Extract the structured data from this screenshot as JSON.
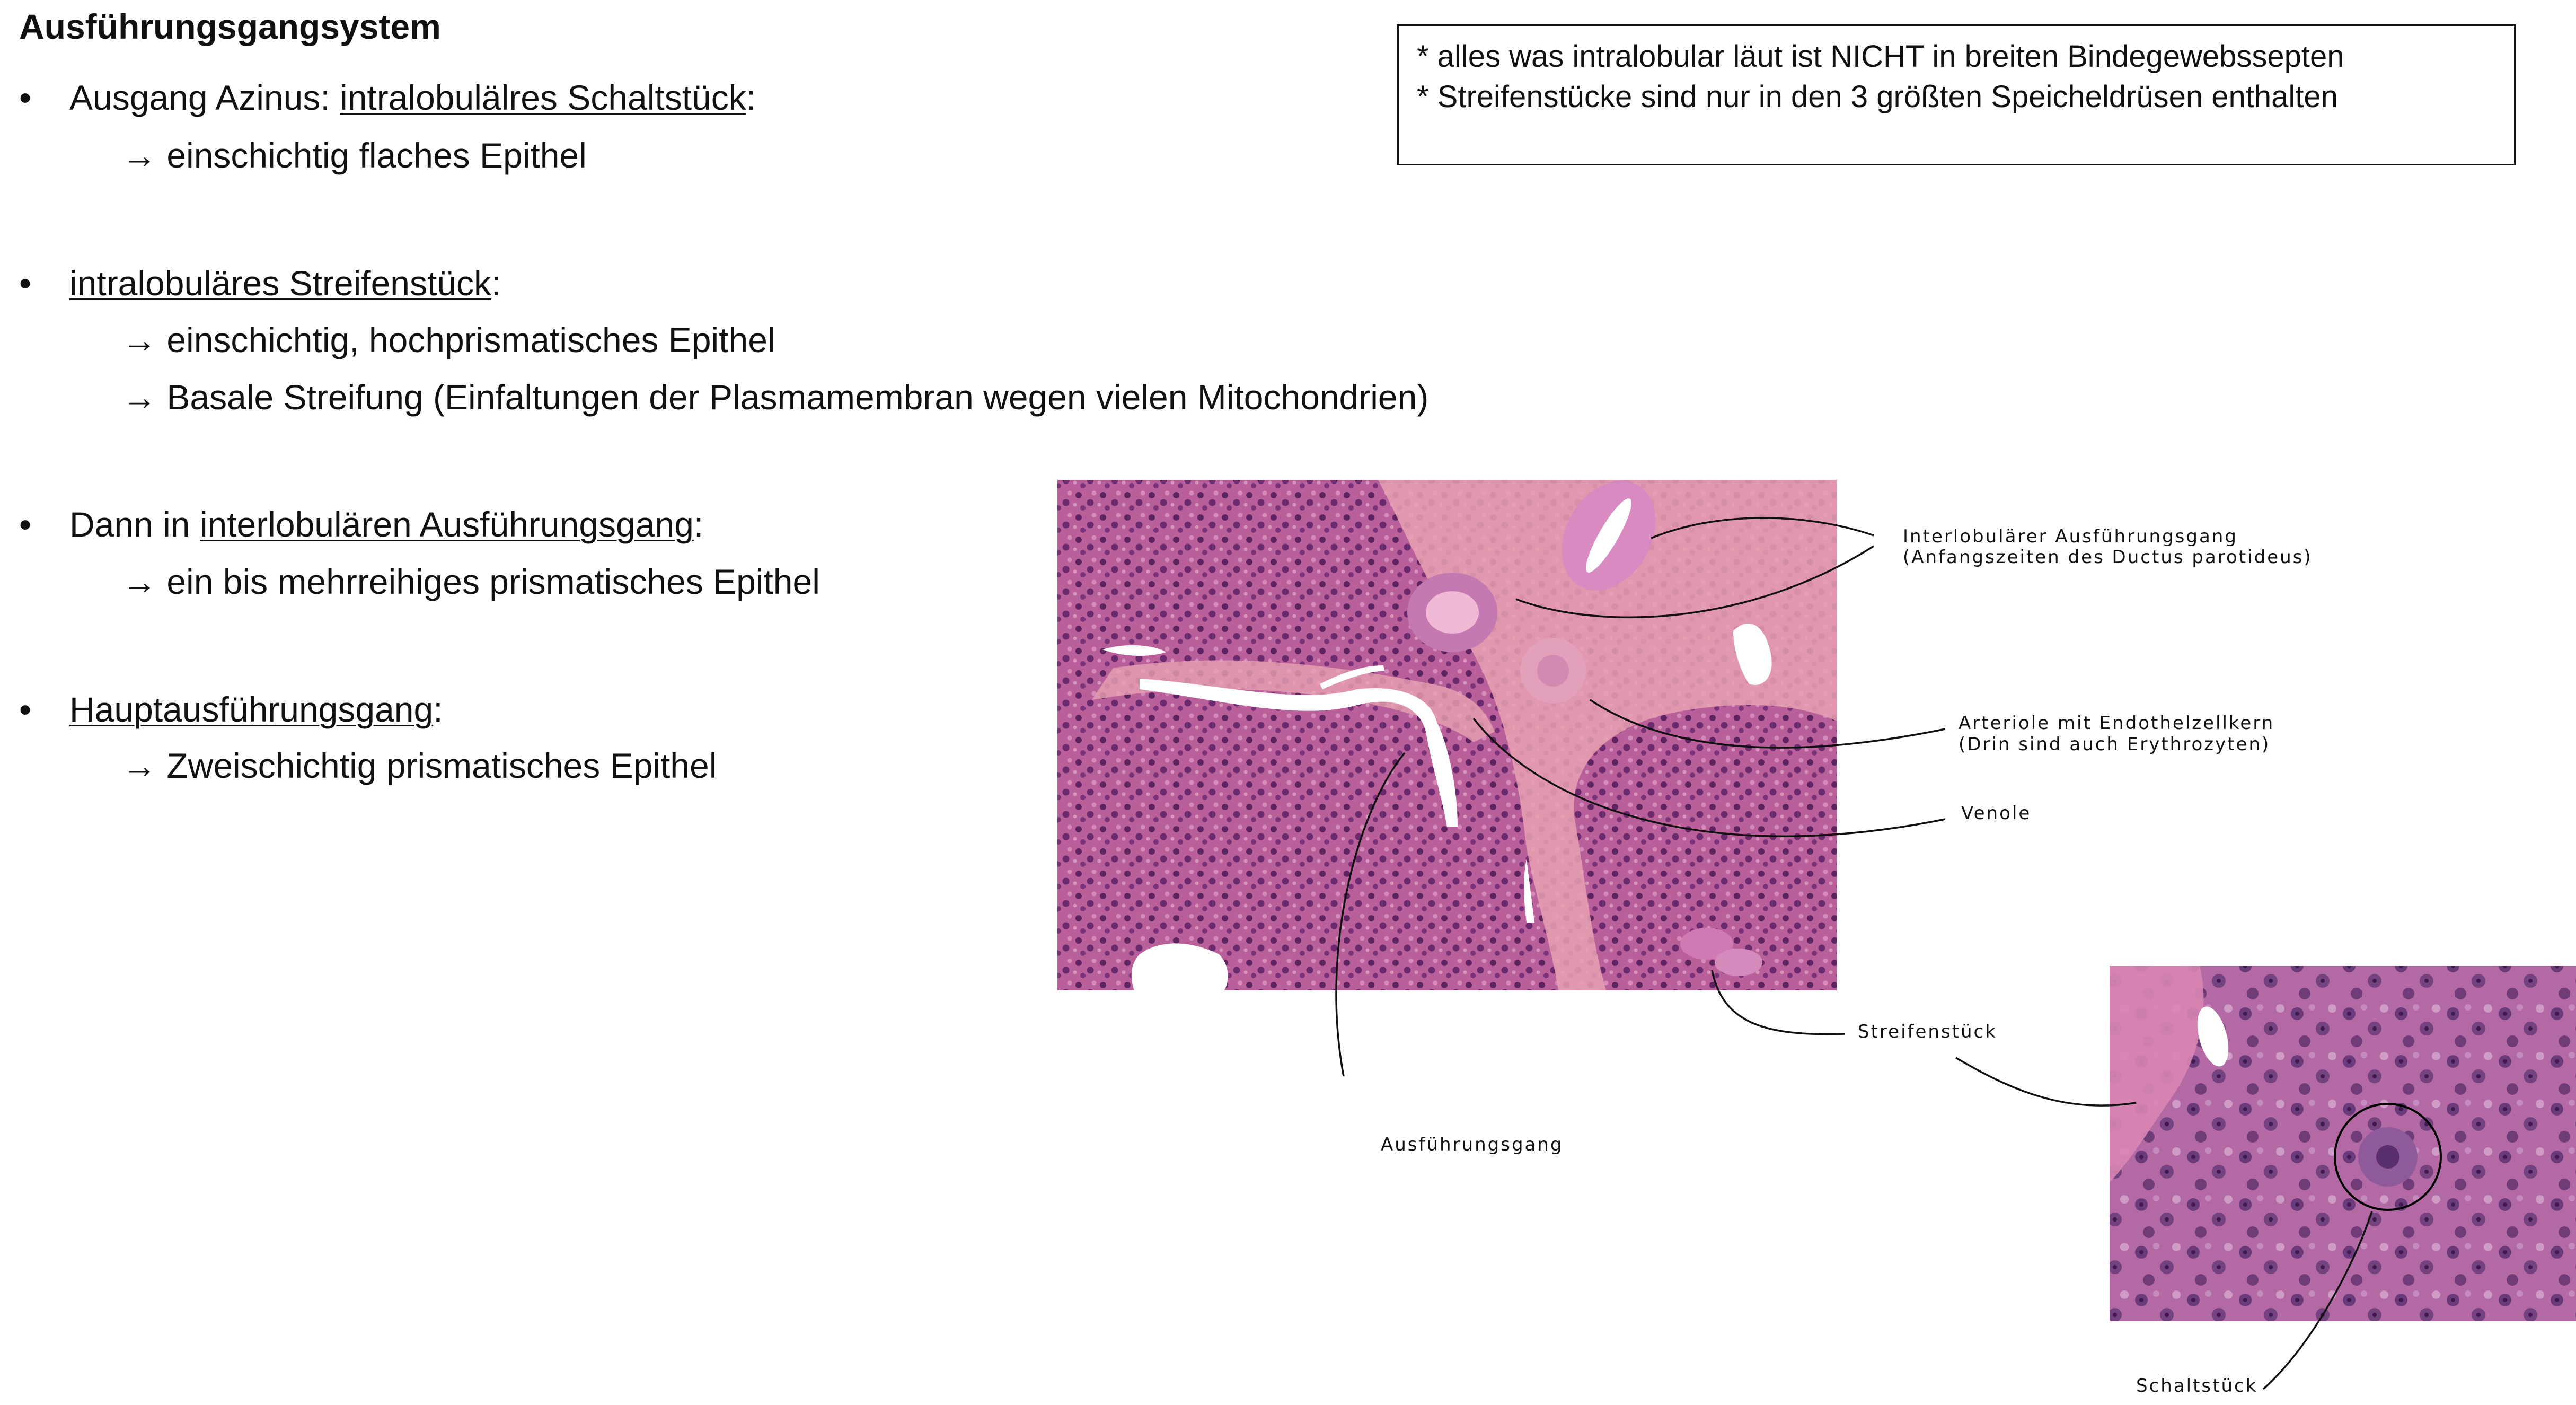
{
  "title": "Ausführungsgangsystem",
  "bullets": [
    {
      "pre": "Ausgang Azinus: ",
      "term": "intralobulälres Schaltstück",
      "post": ":",
      "subs": [
        "→ einschichtig flaches Epithel"
      ]
    },
    {
      "pre": "",
      "term": "intralobuläres Streifenstück",
      "post": ":",
      "subs": [
        "→ einschichtig, hochprismatisches Epithel",
        "→ Basale Streifung (Einfaltungen der Plasmamembran wegen vielen Mitochondrien)"
      ]
    },
    {
      "pre": "Dann in ",
      "term": "interlobulären Ausführungsgang",
      "post": ":",
      "subs": [
        "→ ein bis mehrreihiges prismatisches Epithel"
      ]
    },
    {
      "pre": "",
      "term": "Hauptausführungsgang",
      "post": ":",
      "subs": [
        "→ Zweischichtig prismatisches Epithel"
      ]
    }
  ],
  "bullet_char": "•",
  "note": {
    "line1": "* alles was intralobular läut ist NICHT in breiten Bindegewebssepten",
    "line2": " * Streifenstücke sind nur in den 3 größten Speicheldrüsen enthalten"
  },
  "annotations": {
    "interlobular_1": "Interlobulärer Ausführungsgang",
    "interlobular_2": "(Anfangszeiten des Ductus parotideus)",
    "arteriole_1": "Arteriole mit Endothelzellkern",
    "arteriole_2": "(Drin sind auch Erythrozyten)",
    "venole": "Venole",
    "streifenstueck": "Streifenstück",
    "ausfuehrungsgang": "Ausführungsgang",
    "schaltstueck": "Schaltstück"
  },
  "colors": {
    "tissue_base": "#b5568f",
    "tissue_light": "#cf7fae",
    "tissue_dark": "#7a2f6a",
    "connective": "#e39aa8",
    "lumen": "#ffffff"
  }
}
